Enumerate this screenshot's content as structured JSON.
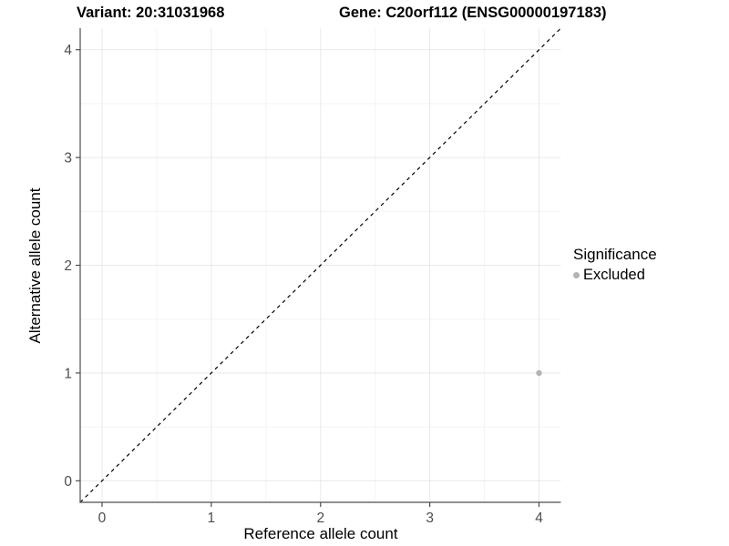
{
  "chart_data": {
    "type": "scatter",
    "title_left": "Variant: 20:31031968",
    "title_right": "Gene: C20orf112 (ENSG00000197183)",
    "xlabel": "Reference allele count",
    "ylabel": "Alternative allele count",
    "xlim": [
      -0.2,
      4.2
    ],
    "ylim": [
      -0.2,
      4.2
    ],
    "xticks": [
      0,
      1,
      2,
      3,
      4
    ],
    "yticks": [
      0,
      1,
      2,
      3,
      4
    ],
    "xminor": [
      0.5,
      1.5,
      2.5,
      3.5
    ],
    "yminor": [
      0.5,
      1.5,
      2.5,
      3.5
    ],
    "grid": true,
    "reference_line": {
      "type": "identity",
      "style": "dashed",
      "from": [
        -0.2,
        -0.2
      ],
      "to": [
        4.2,
        4.2
      ],
      "color": "#000000"
    },
    "series": [
      {
        "name": "Excluded",
        "color": "#b3b3b3",
        "points": [
          {
            "x": 4,
            "y": 1
          }
        ]
      }
    ],
    "legend": {
      "title": "Significance",
      "position": "right",
      "entries": [
        {
          "label": "Excluded",
          "color": "#b3b3b3"
        }
      ]
    }
  },
  "colors": {
    "background": "#ffffff",
    "axis_line": "#4d4d4d",
    "tick_mark": "#4d4d4d",
    "tick_label": "#4d4d4d",
    "grid_major": "#e9e9e9",
    "grid_minor": "#f4f4f4",
    "title_text": "#000000"
  }
}
